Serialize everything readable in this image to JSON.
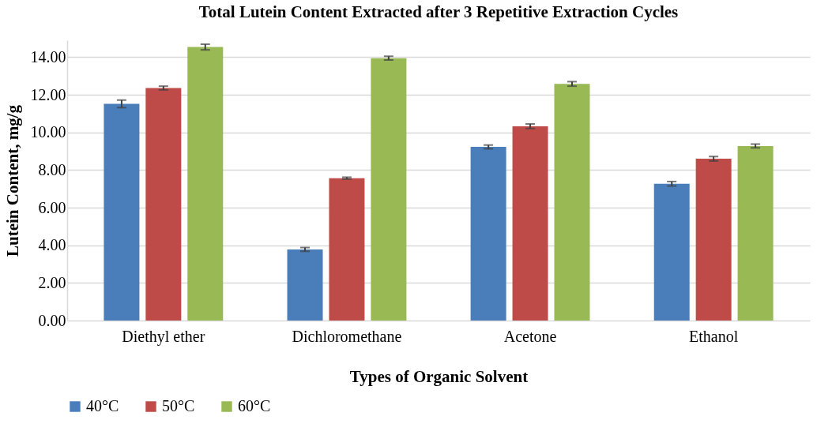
{
  "chart_data": {
    "type": "bar",
    "title": "Total Lutein Content Extracted after 3 Repetitive Extraction Cycles",
    "xlabel": "Types of Organic Solvent",
    "ylabel": "Lutein Content, mg/g",
    "categories": [
      "Diethyl ether",
      "Dichloromethane",
      "Acetone",
      "Ethanol"
    ],
    "series": [
      {
        "name": "40°C",
        "color": "#4a7ebb",
        "values": [
          11.52,
          3.78,
          9.23,
          7.27
        ],
        "errors": [
          0.2,
          0.1,
          0.1,
          0.12
        ]
      },
      {
        "name": "50°C",
        "color": "#be4b48",
        "values": [
          12.36,
          7.57,
          10.33,
          8.6
        ],
        "errors": [
          0.1,
          0.05,
          0.12,
          0.12
        ]
      },
      {
        "name": "60°C",
        "color": "#98b954",
        "values": [
          14.54,
          13.95,
          12.58,
          9.28
        ],
        "errors": [
          0.15,
          0.1,
          0.12,
          0.1
        ]
      }
    ],
    "ylim": [
      0,
      14.9
    ],
    "yticks": [
      {
        "value": 0,
        "label": "0.00"
      },
      {
        "value": 2,
        "label": "2.00"
      },
      {
        "value": 4,
        "label": "4.00"
      },
      {
        "value": 6,
        "label": "6.00"
      },
      {
        "value": 8,
        "label": "8.00"
      },
      {
        "value": 10,
        "label": "10.00"
      },
      {
        "value": 12,
        "label": "12.00"
      },
      {
        "value": 14,
        "label": "14.00"
      }
    ],
    "grid": "y",
    "legend": "bottom"
  }
}
